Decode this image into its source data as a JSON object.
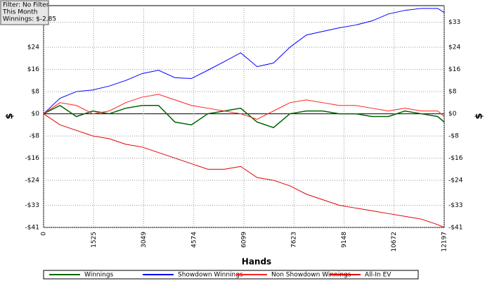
{
  "chart_data": {
    "type": "line",
    "filter": [
      "Filter: No Filter",
      "This Month",
      "Winnings: $-2.85"
    ],
    "x_label": "Hands",
    "y_label": "$",
    "x": [
      0,
      500,
      1000,
      1500,
      2000,
      2500,
      3000,
      3500,
      4000,
      4500,
      5000,
      5500,
      6000,
      6500,
      7000,
      7500,
      8000,
      8500,
      9000,
      9500,
      10000,
      10500,
      11000,
      11500,
      12000,
      12197
    ],
    "series": [
      {
        "name": "Winnings",
        "color": "#006400",
        "values": [
          0,
          3,
          -1,
          1,
          0,
          2,
          3,
          3,
          -3,
          -4,
          0,
          1,
          2,
          -3,
          -5,
          0,
          1,
          1,
          0,
          0,
          -1,
          -1,
          1,
          0,
          -1,
          -3
        ]
      },
      {
        "name": "Showdown Winnings",
        "color": "#0000ff",
        "values": [
          0,
          5.6,
          8,
          8.6,
          10,
          12,
          14.5,
          15.7,
          13,
          12.7,
          15.7,
          18.8,
          22,
          17,
          18.3,
          24,
          28.4,
          29.7,
          31,
          32,
          33.5,
          36,
          37.3,
          38,
          38,
          36.5
        ]
      },
      {
        "name": "Non Showdown Winnings",
        "color": "#ff2020",
        "values": [
          0,
          4,
          3,
          0,
          1,
          4,
          6,
          7,
          5,
          3,
          2,
          1,
          0,
          -2,
          1,
          4,
          5,
          4,
          3,
          3,
          2,
          1,
          2,
          1,
          1,
          -1
        ]
      },
      {
        "name": "All-In EV",
        "color": "#e00000",
        "values": [
          0,
          -4,
          -6,
          -8,
          -9,
          -11,
          -12,
          -14,
          -16,
          -18,
          -20,
          -20,
          -19,
          -23,
          -24,
          -26,
          -29,
          -31,
          -33,
          -34,
          -35,
          -36,
          -37,
          -38,
          -40,
          -41
        ]
      }
    ],
    "xlim": [
      0,
      12197
    ],
    "xticks": [
      0,
      1525,
      3049,
      4574,
      6099,
      7623,
      9148,
      10672,
      12197
    ],
    "ylim": [
      -41,
      39
    ],
    "yticks": [
      {
        "value": -41,
        "label": "-$41"
      },
      {
        "value": -33,
        "label": "-$33"
      },
      {
        "value": -24,
        "label": "-$24"
      },
      {
        "value": -16,
        "label": "-$16"
      },
      {
        "value": -8,
        "label": "-$8"
      },
      {
        "value": 0,
        "label": "$0"
      },
      {
        "value": 8,
        "label": "$8"
      },
      {
        "value": 16,
        "label": "$16"
      },
      {
        "value": 24,
        "label": "$24"
      },
      {
        "value": 33,
        "label": "$33"
      }
    ],
    "grid": true
  }
}
